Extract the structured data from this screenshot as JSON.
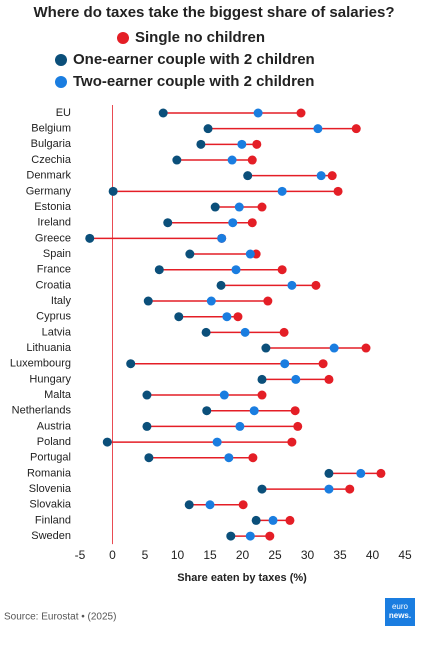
{
  "chart_data": {
    "type": "dumbbell",
    "title": "Where do taxes take the biggest share of salaries?",
    "x_label": "Share eaten by taxes (%)",
    "source": "Source: Eurostat • (2025)",
    "brand": [
      "euro",
      "news."
    ],
    "categories": [
      "EU",
      "Belgium",
      "Bulgaria",
      "Czechia",
      "Denmark",
      "Germany",
      "Estonia",
      "Ireland",
      "Greece",
      "Spain",
      "France",
      "Croatia",
      "Italy",
      "Cyprus",
      "Latvia",
      "Lithuania",
      "Luxembourg",
      "Hungary",
      "Malta",
      "Netherlands",
      "Austria",
      "Poland",
      "Portugal",
      "Romania",
      "Slovenia",
      "Slovakia",
      "Finland",
      "Sweden"
    ],
    "series": [
      {
        "name": "Single no children",
        "color": "#e41e26",
        "values": [
          29.0,
          37.5,
          22.2,
          21.5,
          33.8,
          34.7,
          23.0,
          21.5,
          16.8,
          22.1,
          26.1,
          31.3,
          23.9,
          19.3,
          26.4,
          39.0,
          32.4,
          33.3,
          23.0,
          28.1,
          28.5,
          27.6,
          21.6,
          41.3,
          36.5,
          20.1,
          27.3,
          24.2
        ]
      },
      {
        "name": "One-earner couple with 2 children",
        "color": "#0b4f7a",
        "values": [
          7.8,
          14.7,
          13.6,
          9.9,
          20.8,
          0.1,
          15.8,
          8.5,
          -3.5,
          11.9,
          7.2,
          16.7,
          5.5,
          10.2,
          14.4,
          23.6,
          2.8,
          23.0,
          5.3,
          14.5,
          5.3,
          -0.8,
          5.6,
          33.3,
          23.0,
          11.8,
          22.1,
          18.2
        ]
      },
      {
        "name": "Two-earner couple with 2 children",
        "color": "#1a7de0",
        "values": [
          22.4,
          31.6,
          19.9,
          18.4,
          32.1,
          26.1,
          19.5,
          18.5,
          16.8,
          21.2,
          19.0,
          27.6,
          15.2,
          17.6,
          20.4,
          34.1,
          26.5,
          28.2,
          17.2,
          21.8,
          19.6,
          16.1,
          17.9,
          38.2,
          33.3,
          15.0,
          24.7,
          21.2
        ]
      }
    ],
    "line_color": "#e41e26",
    "xlim": [
      -5,
      45
    ],
    "xticks": [
      -5,
      0,
      5,
      10,
      15,
      20,
      25,
      30,
      35,
      40,
      45
    ]
  }
}
